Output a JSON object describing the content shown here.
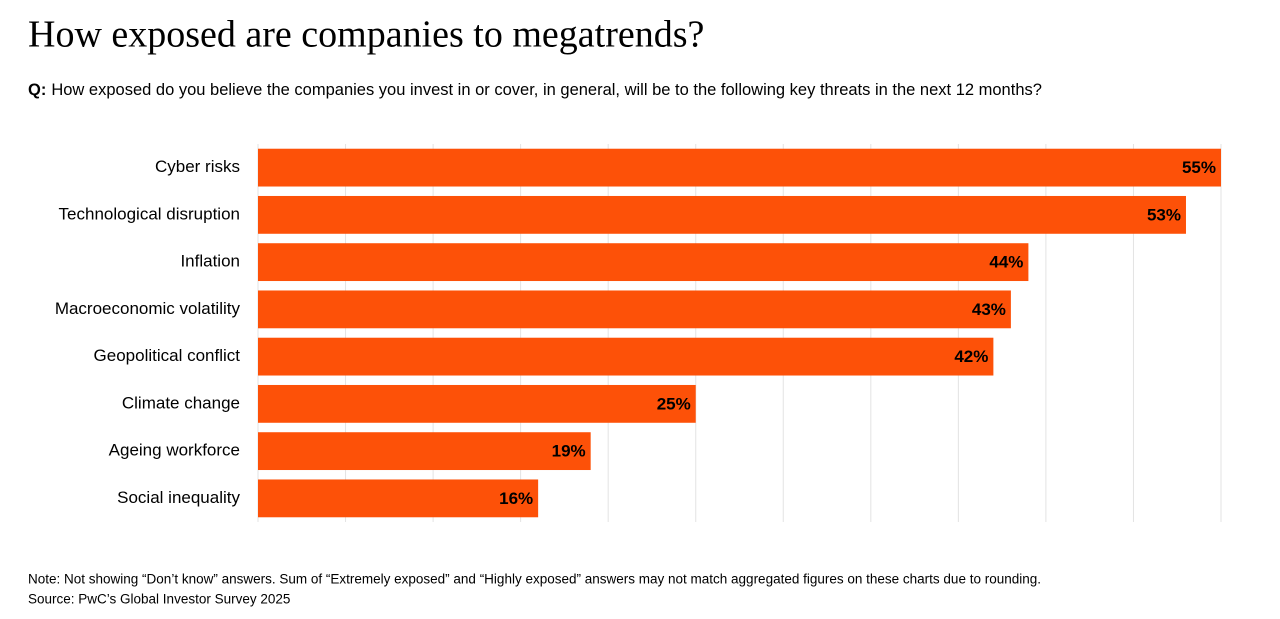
{
  "chart_data": {
    "type": "bar",
    "orientation": "horizontal",
    "title": "How exposed are companies to megatrends?",
    "question_label": "Q:",
    "subtitle": "How exposed do you believe the companies you invest in or cover, in general, will be to the following key threats in the next 12 months?",
    "categories": [
      "Cyber risks",
      "Technological disruption",
      "Inflation",
      "Macroeconomic volatility",
      "Geopolitical conflict",
      "Climate change",
      "Ageing workforce",
      "Social inequality"
    ],
    "values": [
      55,
      53,
      44,
      43,
      42,
      25,
      19,
      16
    ],
    "value_labels": [
      "55%",
      "53%",
      "44%",
      "43%",
      "42%",
      "25%",
      "19%",
      "16%"
    ],
    "color": "#fd5108",
    "xlim": [
      0,
      55
    ],
    "xticks": [
      0,
      5,
      10,
      15,
      20,
      25,
      30,
      35,
      40,
      45,
      50,
      55
    ],
    "grid": true,
    "note": "Note: Not showing “Don’t know” answers. Sum of “Extremely exposed” and “Highly exposed” answers may not match aggregated figures on these charts due to rounding.",
    "source": "Source: PwC’s Global Investor Survey 2025"
  }
}
